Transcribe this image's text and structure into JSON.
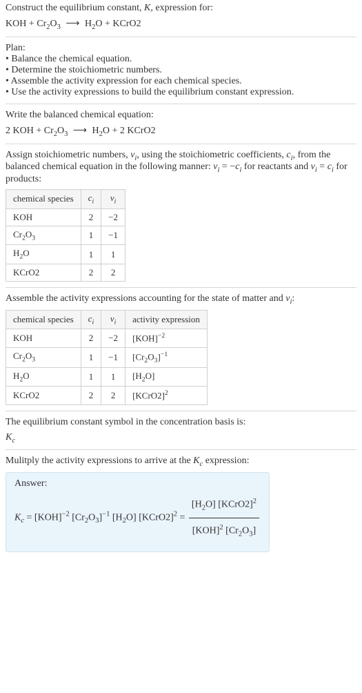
{
  "intro": {
    "line1": "Construct the equilibrium constant, ",
    "K": "K",
    "line1b": ", expression for:"
  },
  "eq_unbalanced": {
    "r1": "KOH",
    "plus1": " + ",
    "r2": "Cr",
    "r2_sub": "2",
    "r2b": "O",
    "r2b_sub": "3",
    "arrow": "⟶",
    "p1": "H",
    "p1_sub": "2",
    "p1b": "O",
    "plus2": " + ",
    "p2": "KCrO2"
  },
  "plan": {
    "title": "Plan:",
    "b1": "• Balance the chemical equation.",
    "b2": "• Determine the stoichiometric numbers.",
    "b3": "• Assemble the activity expression for each chemical species.",
    "b4": "• Use the activity expressions to build the equilibrium constant expression."
  },
  "balanced": {
    "title": "Write the balanced chemical equation:",
    "c1": "2 KOH",
    "plus1": " + ",
    "r2": "Cr",
    "r2_sub": "2",
    "r2b": "O",
    "r2b_sub": "3",
    "arrow": "⟶",
    "p1": "H",
    "p1_sub": "2",
    "p1b": "O",
    "plus2": " + ",
    "c2": "2 KCrO2"
  },
  "assign": {
    "text1": "Assign stoichiometric numbers, ",
    "nu": "ν",
    "nu_sub": "i",
    "text2": ", using the stoichiometric coefficients, ",
    "c": "c",
    "c_sub": "i",
    "text3": ", from the balanced chemical equation in the following manner: ",
    "rel1a": "ν",
    "rel1_sub": "i",
    "rel1_eq": " = −",
    "rel1b": "c",
    "rel1b_sub": "i",
    "text4": " for reactants and ",
    "rel2a": "ν",
    "rel2_sub": "i",
    "rel2_eq": " = ",
    "rel2b": "c",
    "rel2b_sub": "i",
    "text5": " for products:"
  },
  "table1": {
    "h1": "chemical species",
    "h2": "c",
    "h2_sub": "i",
    "h3": "ν",
    "h3_sub": "i",
    "rows": [
      {
        "sp": "KOH",
        "ci": "2",
        "nui": "−2"
      },
      {
        "sp": "Cr2O3",
        "ci": "1",
        "nui": "−1"
      },
      {
        "sp": "H2O",
        "ci": "1",
        "nui": "1"
      },
      {
        "sp": "KCrO2",
        "ci": "2",
        "nui": "2"
      }
    ],
    "sp_disp": {
      "Cr2O3_a": "Cr",
      "Cr2O3_s1": "2",
      "Cr2O3_b": "O",
      "Cr2O3_s2": "3",
      "H2O_a": "H",
      "H2O_s1": "2",
      "H2O_b": "O"
    }
  },
  "assemble": {
    "text1": "Assemble the activity expressions accounting for the state of matter and ",
    "nu": "ν",
    "nu_sub": "i",
    "colon": ":"
  },
  "table2": {
    "h1": "chemical species",
    "h2": "c",
    "h2_sub": "i",
    "h3": "ν",
    "h3_sub": "i",
    "h4": "activity expression",
    "rows": [
      {
        "sp": "KOH",
        "ci": "2",
        "nui": "−2",
        "b": "[KOH]",
        "exp": "−2"
      },
      {
        "sp": "Cr2O3",
        "ci": "1",
        "nui": "−1",
        "b": "[Cr2O3]",
        "exp": "−1"
      },
      {
        "sp": "H2O",
        "ci": "1",
        "nui": "1",
        "b": "[H2O]",
        "exp": ""
      },
      {
        "sp": "KCrO2",
        "ci": "2",
        "nui": "2",
        "b": "[KCrO2]",
        "exp": "2"
      }
    ],
    "disp": {
      "Cr2O3_open": "[Cr",
      "Cr2O3_s1": "2",
      "Cr2O3_mid": "O",
      "Cr2O3_s2": "3",
      "Cr2O3_close": "]",
      "H2O_open": "[H",
      "H2O_s1": "2",
      "H2O_close": "O]"
    }
  },
  "symbol": {
    "text": "The equilibrium constant symbol in the concentration basis is:",
    "K": "K",
    "K_sub": "c"
  },
  "multiply": {
    "text1": "Mulitply the activity expressions to arrive at the ",
    "K": "K",
    "K_sub": "c",
    "text2": " expression:"
  },
  "answer": {
    "label": "Answer:",
    "K": "K",
    "K_sub": "c",
    "eq": " = ",
    "t1": "[KOH]",
    "t1_exp": "−2",
    "sp1": " ",
    "t2_open": "[Cr",
    "t2_s1": "2",
    "t2_mid": "O",
    "t2_s2": "3",
    "t2_close": "]",
    "t2_exp": "−1",
    "sp2": " ",
    "t3_open": "[H",
    "t3_s1": "2",
    "t3_close": "O]",
    "sp3": " ",
    "t4": "[KCrO2]",
    "t4_exp": "2",
    "eq2": " = ",
    "num_a_open": "[H",
    "num_a_s1": "2",
    "num_a_close": "O]",
    "num_sp": " ",
    "num_b": "[KCrO2]",
    "num_b_exp": "2",
    "den_a": "[KOH]",
    "den_a_exp": "2",
    "den_sp": " ",
    "den_b_open": "[Cr",
    "den_b_s1": "2",
    "den_b_mid": "O",
    "den_b_s2": "3",
    "den_b_close": "]"
  },
  "colors": {
    "hr": "#d8d8d8",
    "table_border": "#d0d0d0",
    "answer_bg": "#eaf4fb",
    "answer_border": "#cfe5f2"
  }
}
